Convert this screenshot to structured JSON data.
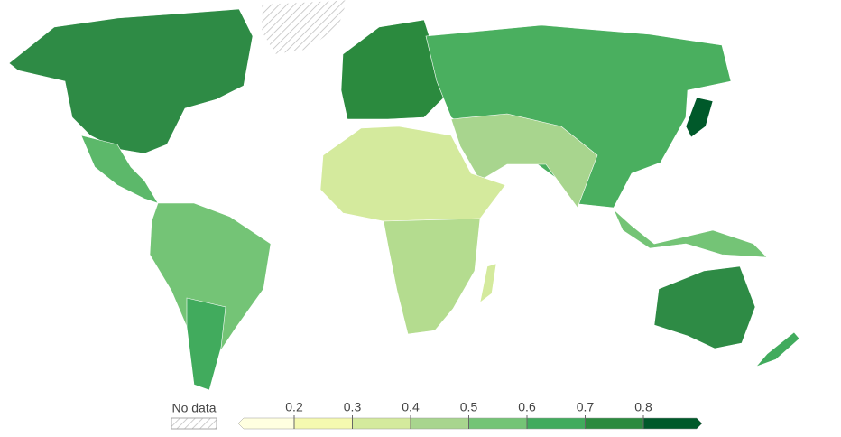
{
  "chart_data": {
    "type": "choropleth",
    "legend": {
      "no_data_label": "No data",
      "ticks": [
        0.2,
        0.3,
        0.4,
        0.5,
        0.6,
        0.7,
        0.8
      ],
      "colors": [
        "#ffffe0",
        "#f5f9b0",
        "#d4ea9d",
        "#a8d58e",
        "#74c476",
        "#41ab5d",
        "#2b8a3e",
        "#00592a"
      ]
    }
  }
}
